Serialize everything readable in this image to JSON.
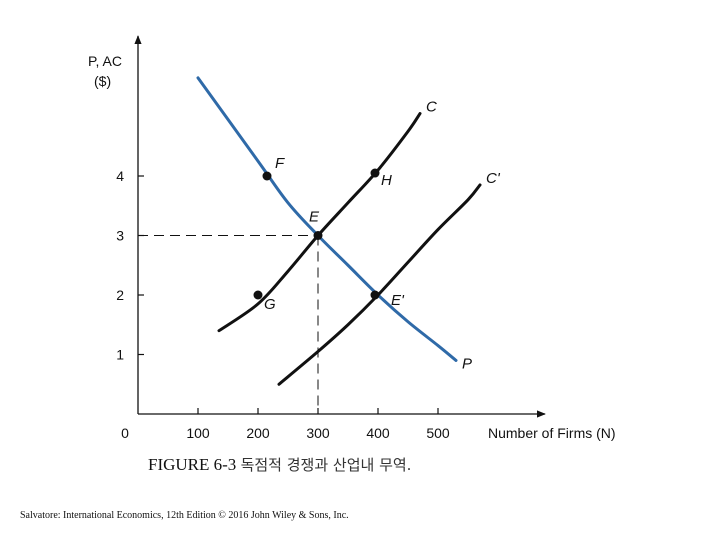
{
  "chart_data": {
    "type": "line",
    "y_title_line1": "P, AC",
    "y_title_line2": "($)",
    "xlabel": "Number of Firms (N)",
    "x_ticks": [
      0,
      100,
      200,
      300,
      400,
      500
    ],
    "y_ticks": [
      1,
      2,
      3,
      4
    ],
    "xlim": [
      0,
      540
    ],
    "ylim": [
      0,
      4.55
    ],
    "grid": false,
    "series": [
      {
        "name": "P",
        "color": "#2f6aa8",
        "x": [
          100,
          200,
          250,
          300,
          350,
          400,
          450,
          500,
          530
        ],
        "y": [
          5.65,
          4.25,
          3.55,
          3.0,
          2.5,
          2.0,
          1.55,
          1.15,
          0.9
        ]
      },
      {
        "name": "C",
        "color": "#111111",
        "x": [
          135,
          200,
          250,
          300,
          350,
          400,
          450,
          470
        ],
        "y": [
          1.4,
          1.85,
          2.4,
          3.0,
          3.55,
          4.1,
          4.75,
          5.05
        ]
      },
      {
        "name": "C'",
        "color": "#111111",
        "x": [
          235,
          300,
          350,
          400,
          450,
          500,
          550,
          570
        ],
        "y": [
          0.5,
          1.05,
          1.5,
          2.0,
          2.55,
          3.1,
          3.6,
          3.85
        ]
      }
    ],
    "points": [
      {
        "label": "F",
        "x": 215,
        "y": 4.0
      },
      {
        "label": "H",
        "x": 395,
        "y": 4.05
      },
      {
        "label": "E",
        "x": 300,
        "y": 3.0
      },
      {
        "label": "G",
        "x": 200,
        "y": 2.0
      },
      {
        "label": "E'",
        "x": 395,
        "y": 2.0
      }
    ],
    "reference_point": {
      "x": 300,
      "y": 3
    }
  },
  "caption": {
    "figure_number": "FIGURE 6-3",
    "title": "독점적 경쟁과 산업내 무역."
  },
  "source": "Salvatore: International Economics, 12th Edition © 2016 John Wiley & Sons, Inc."
}
